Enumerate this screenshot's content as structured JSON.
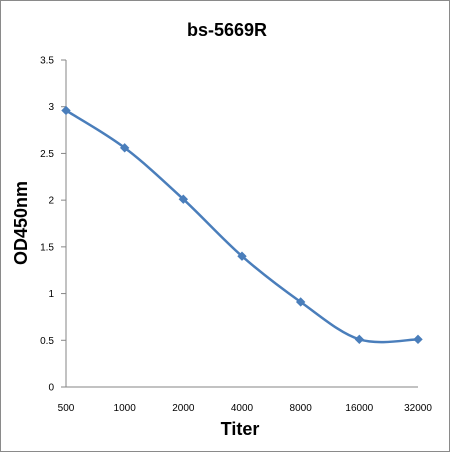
{
  "chart_data": {
    "type": "line",
    "title": "bs-5669R",
    "xlabel": "Titer",
    "ylabel": "OD450nm",
    "categories": [
      "500",
      "1000",
      "2000",
      "4000",
      "8000",
      "16000",
      "32000"
    ],
    "series": [
      {
        "values": [
          2.96,
          2.56,
          2.01,
          1.4,
          0.91,
          0.51,
          0.51
        ]
      }
    ],
    "ylim": [
      0,
      3.5
    ],
    "yticks": [
      "0",
      "0.5",
      "1",
      "1.5",
      "2",
      "2.5",
      "3",
      "3.5"
    ],
    "grid": false,
    "legend": "none",
    "smooth": true,
    "marker": "diamond",
    "colors": {
      "series": "#4a7ebb",
      "axis": "#868686"
    }
  }
}
